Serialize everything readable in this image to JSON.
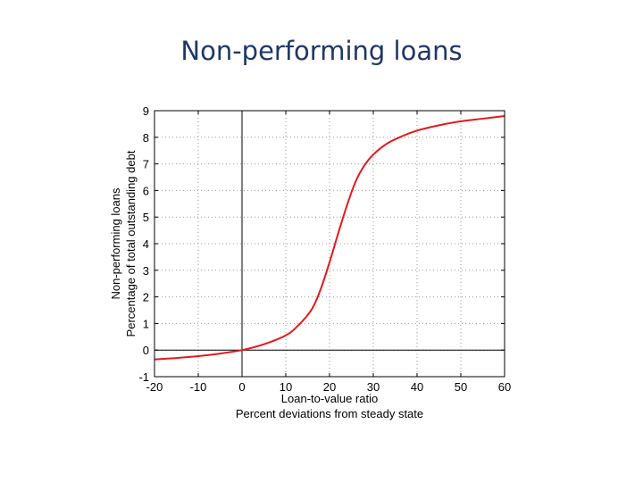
{
  "slide": {
    "title": "Non-performing loans"
  },
  "chart_data": {
    "type": "line",
    "title": "",
    "xlabel": [
      "Loan-to-value ratio",
      "Percent deviations from steady state"
    ],
    "ylabel": [
      "Non-performing loans",
      "Percentage of total outstanding debt"
    ],
    "xlim": [
      -20,
      60
    ],
    "ylim": [
      -1,
      9
    ],
    "xticks": [
      -20,
      -10,
      0,
      10,
      20,
      30,
      40,
      50,
      60
    ],
    "yticks": [
      -1,
      0,
      1,
      2,
      3,
      4,
      5,
      6,
      7,
      8,
      9
    ],
    "grid": "dotted",
    "series": [
      {
        "color": "#e41a1c",
        "x": [
          -20,
          -15,
          -10,
          -5,
          0,
          5,
          10,
          13,
          16,
          18,
          20,
          22,
          24,
          26,
          28,
          30,
          33,
          36,
          40,
          45,
          50,
          55,
          60
        ],
        "y": [
          -0.35,
          -0.3,
          -0.23,
          -0.13,
          0.0,
          0.22,
          0.55,
          0.95,
          1.55,
          2.3,
          3.3,
          4.4,
          5.45,
          6.35,
          6.95,
          7.35,
          7.75,
          8.0,
          8.25,
          8.45,
          8.6,
          8.7,
          8.8
        ]
      }
    ],
    "reference_lines": {
      "x": 0,
      "y": 0
    }
  }
}
